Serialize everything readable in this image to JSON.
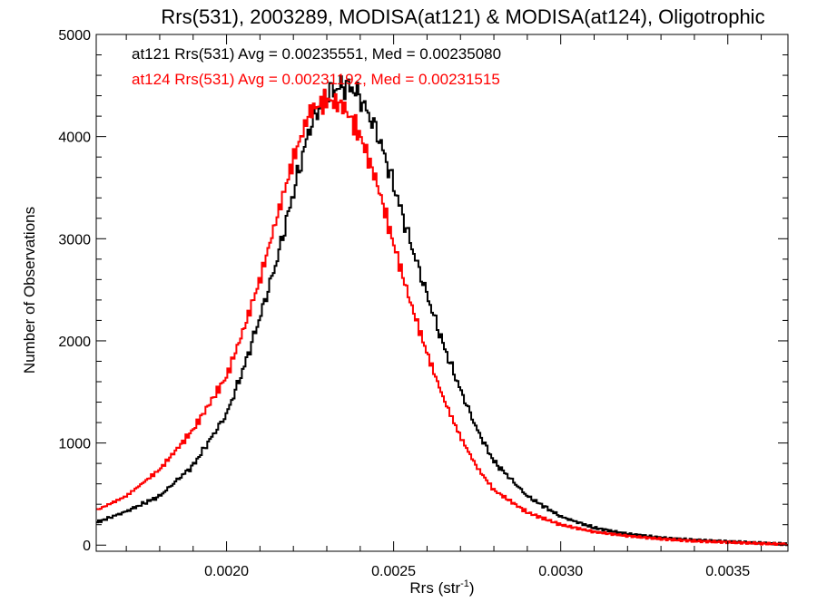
{
  "chart_data": {
    "type": "line",
    "title": "Rrs(531), 2003289, MODISA(at121) & MODISA(at124), Oligotrophic",
    "xlabel_base": "Rrs (str",
    "xlabel_exp": "-1",
    "xlabel_close": ")",
    "ylabel": "Number of Observations",
    "xlim": [
      0.00161,
      0.00368
    ],
    "ylim": [
      -60,
      5000
    ],
    "xticks": [
      0.002,
      0.0025,
      0.003,
      0.0035
    ],
    "xtick_labels": [
      "0.0020",
      "0.0025",
      "0.0030",
      "0.0035"
    ],
    "yticks": [
      0,
      1000,
      2000,
      3000,
      4000,
      5000
    ],
    "ytick_labels": [
      "0",
      "1000",
      "2000",
      "3000",
      "4000",
      "5000"
    ],
    "x_minor_step": 0.0001,
    "y_minor_step": 200,
    "series": [
      {
        "name": "at121",
        "color": "#000000",
        "legend": "at121 Rrs(531) Avg = 0.00235551, Med = 0.00235080",
        "x": [
          0.00161,
          0.0017,
          0.0018,
          0.0019,
          0.002,
          0.00205,
          0.0021,
          0.00215,
          0.0022,
          0.00225,
          0.0023,
          0.00235,
          0.00238,
          0.0024,
          0.00245,
          0.0025,
          0.00255,
          0.0026,
          0.00265,
          0.0027,
          0.00275,
          0.0028,
          0.0029,
          0.003,
          0.0031,
          0.0032,
          0.0033,
          0.0034,
          0.0035,
          0.0036,
          0.00368
        ],
        "y": [
          220,
          330,
          480,
          780,
          1280,
          1720,
          2230,
          2780,
          3450,
          4100,
          4430,
          4500,
          4470,
          4380,
          4050,
          3530,
          2970,
          2450,
          1950,
          1520,
          1130,
          820,
          480,
          280,
          170,
          110,
          72,
          50,
          35,
          20,
          10
        ]
      },
      {
        "name": "at124",
        "color": "#ff0000",
        "legend": "at124 Rrs(531) Avg = 0.00231192, Med = 0.00231515",
        "x": [
          0.00161,
          0.0017,
          0.0018,
          0.0019,
          0.002,
          0.00205,
          0.0021,
          0.00215,
          0.0022,
          0.00225,
          0.0023,
          0.00235,
          0.0024,
          0.00245,
          0.0025,
          0.00255,
          0.0026,
          0.00265,
          0.0027,
          0.00275,
          0.0028,
          0.0029,
          0.003,
          0.0031,
          0.0032,
          0.0033,
          0.0034,
          0.0035,
          0.0036,
          0.00368
        ],
        "y": [
          340,
          480,
          740,
          1130,
          1650,
          2100,
          2600,
          3200,
          3780,
          4250,
          4360,
          4300,
          4010,
          3550,
          2950,
          2380,
          1880,
          1430,
          1060,
          760,
          540,
          320,
          200,
          130,
          90,
          60,
          40,
          28,
          16,
          8
        ]
      }
    ]
  }
}
